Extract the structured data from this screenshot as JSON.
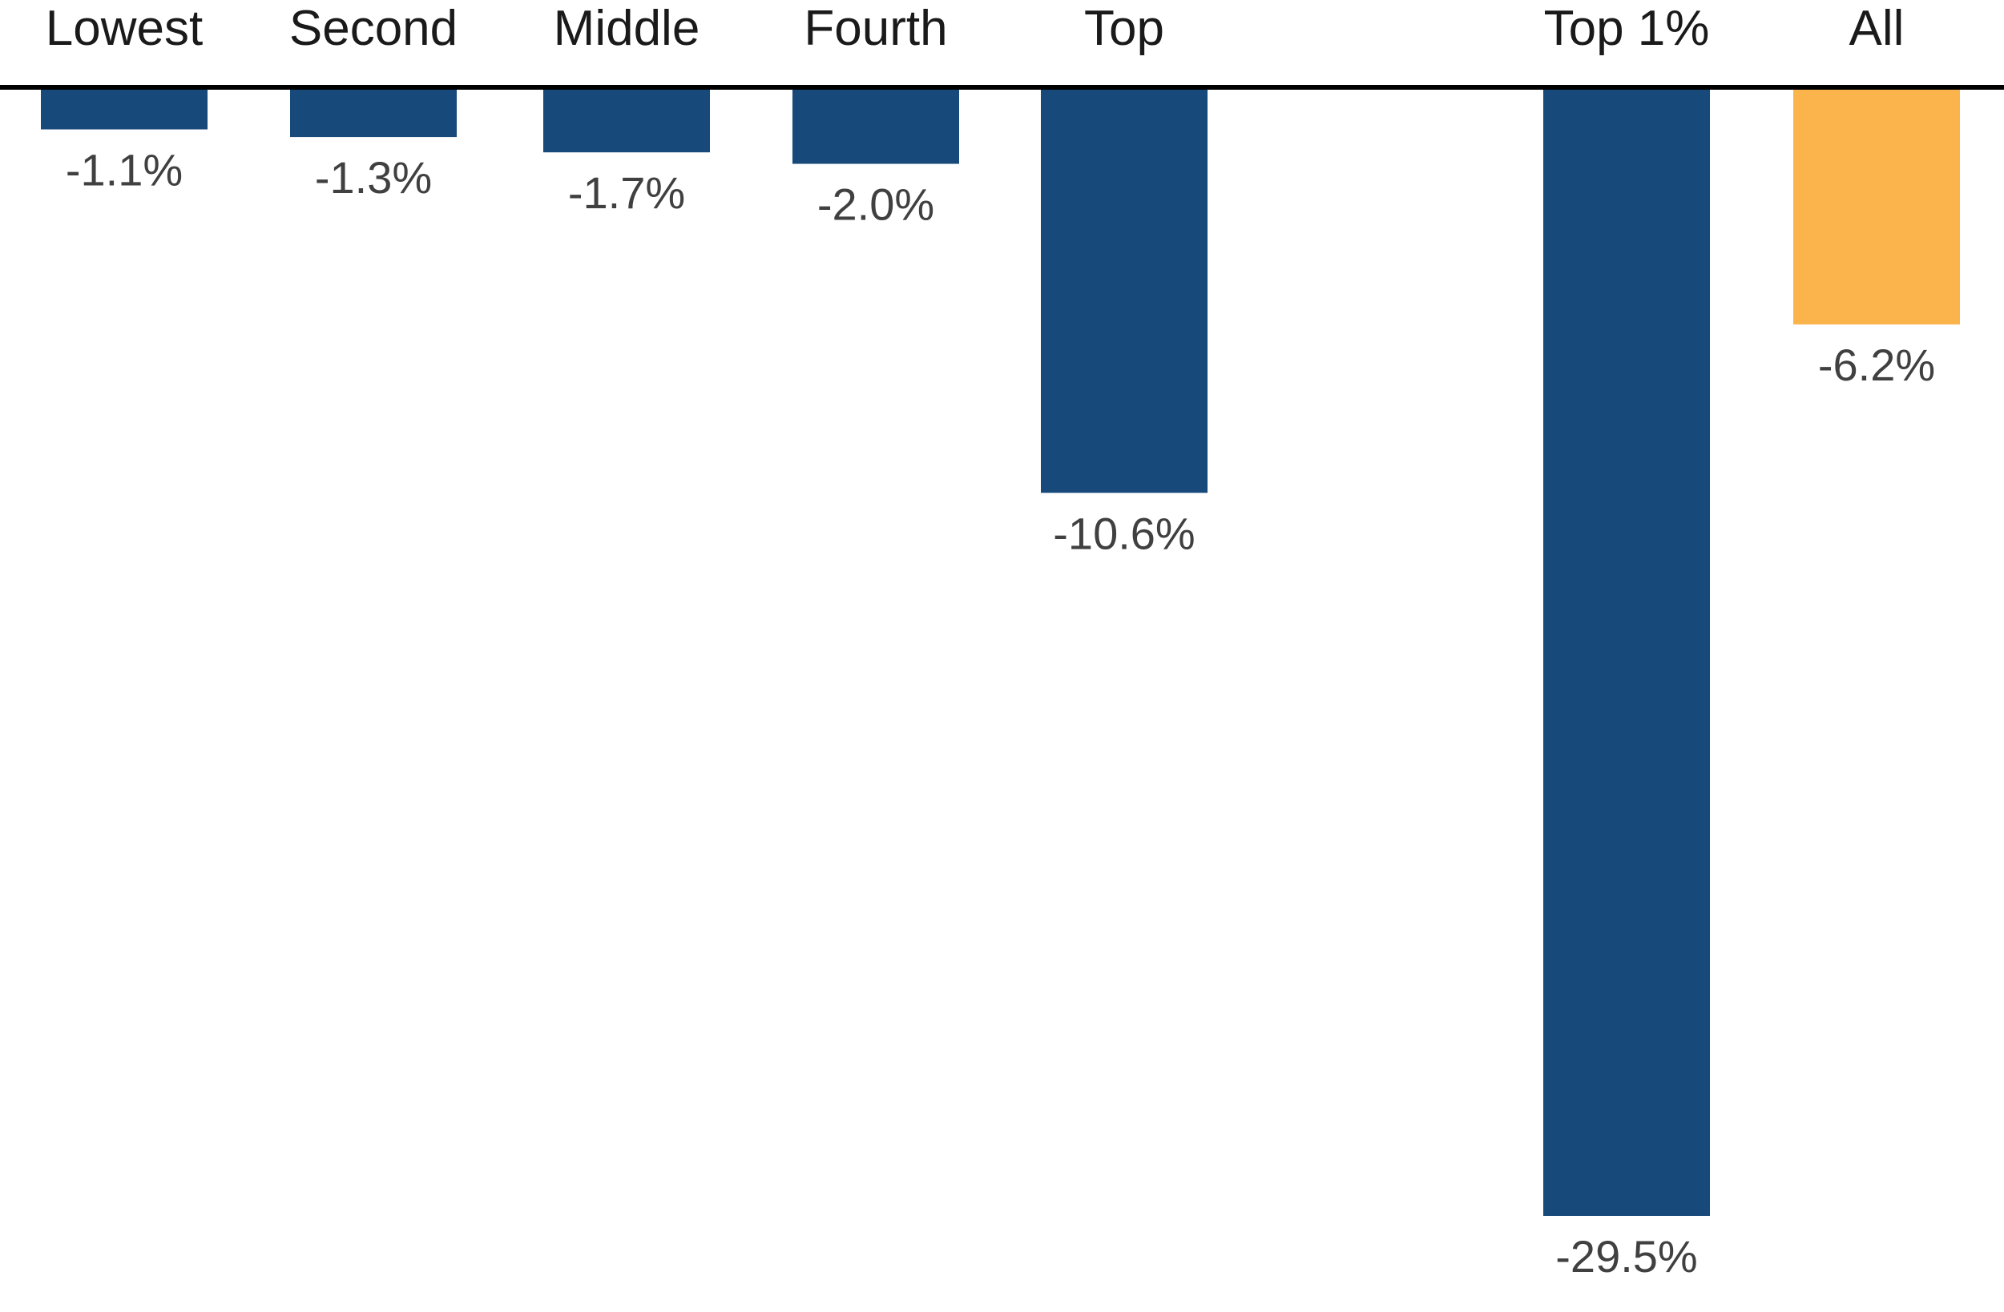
{
  "chart_data": {
    "type": "bar",
    "categories": [
      "Lowest",
      "Second",
      "Middle",
      "Fourth",
      "Top",
      "Top 1%",
      "All"
    ],
    "values": [
      -1.1,
      -1.3,
      -1.7,
      -2.0,
      -10.6,
      -29.5,
      -6.2
    ],
    "value_labels": [
      "-1.1%",
      "-1.3%",
      "-1.7%",
      "-2.0%",
      "-10.6%",
      "-29.5%",
      "-6.2%"
    ],
    "title": "",
    "xlabel": "",
    "ylabel": "",
    "ylim": [
      -29.5,
      0
    ],
    "grid": false,
    "legend": "none",
    "category_axis_position": "top",
    "colors": {
      "bar": "#17497a",
      "highlight": "#fbb34c",
      "axis": "#000000"
    },
    "highlight_category": "All"
  }
}
